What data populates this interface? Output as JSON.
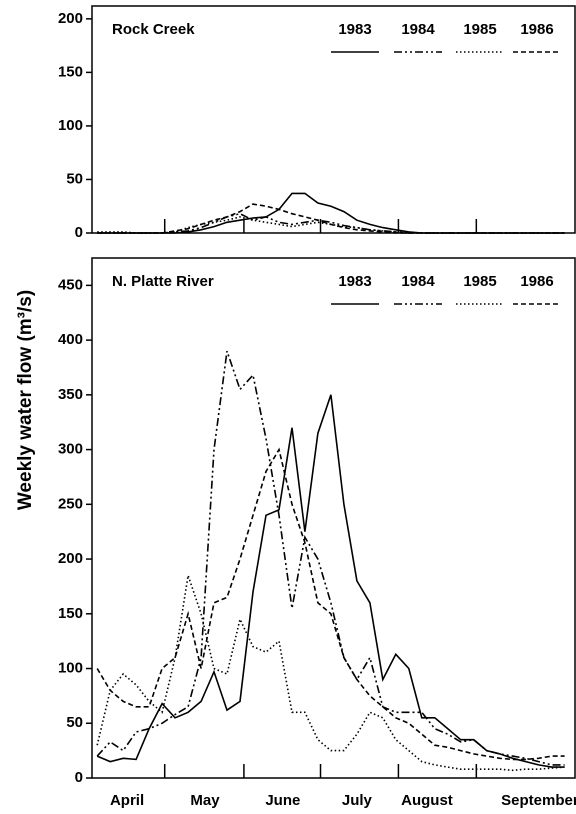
{
  "ylabel": "Weekly water flow (m³/s)",
  "chart_data": [
    {
      "type": "line",
      "title": "Rock Creek",
      "x": [
        0,
        1,
        2,
        3,
        4,
        5,
        6,
        7,
        8,
        9,
        10,
        11,
        12,
        13,
        14,
        15,
        16,
        17,
        18,
        19,
        20,
        21,
        22,
        23,
        24,
        25,
        26,
        27,
        28,
        29,
        30,
        31,
        32,
        33,
        34,
        35,
        36
      ],
      "xlim": [
        -0.4,
        36.8
      ],
      "minor_xticks": [
        5.2,
        11.3,
        17.2,
        23.2,
        29.2
      ],
      "ylim": [
        0,
        212
      ],
      "yticks": [
        0,
        50,
        100,
        150,
        200
      ],
      "series": [
        {
          "name": "1983",
          "color": "#000000",
          "style": "solid",
          "values": [
            0,
            0,
            0,
            0,
            0,
            0,
            0,
            1,
            3,
            6,
            10,
            12,
            14,
            15,
            22,
            37,
            37,
            28,
            25,
            20,
            12,
            8,
            5,
            3,
            1,
            0,
            0,
            0,
            0,
            0,
            0,
            0,
            0,
            0,
            0,
            0,
            0
          ]
        },
        {
          "name": "1984",
          "color": "#000000",
          "style": "dashdot",
          "values": [
            0,
            0,
            0,
            0,
            0,
            0,
            1,
            2,
            5,
            10,
            15,
            18,
            12,
            15,
            10,
            8,
            10,
            12,
            10,
            7,
            5,
            3,
            2,
            1,
            0,
            0,
            0,
            0,
            0,
            0,
            0,
            0,
            0,
            0,
            0,
            0,
            0
          ]
        },
        {
          "name": "1985",
          "color": "#000000",
          "style": "dotted",
          "values": [
            1,
            1,
            1,
            0,
            0,
            0,
            1,
            5,
            8,
            10,
            12,
            15,
            12,
            10,
            8,
            6,
            8,
            10,
            8,
            6,
            5,
            3,
            2,
            1,
            0,
            0,
            0,
            0,
            0,
            0,
            0,
            0,
            0,
            0,
            0,
            0,
            0
          ]
        },
        {
          "name": "1986",
          "color": "#000000",
          "style": "dashed",
          "values": [
            0,
            0,
            0,
            0,
            0,
            0,
            2,
            4,
            8,
            12,
            15,
            20,
            27,
            25,
            22,
            18,
            15,
            12,
            8,
            5,
            3,
            2,
            1,
            0,
            0,
            0,
            0,
            0,
            0,
            0,
            0,
            0,
            0,
            0,
            0,
            0,
            0
          ]
        }
      ]
    },
    {
      "type": "line",
      "title": "N. Platte River",
      "x": [
        0,
        1,
        2,
        3,
        4,
        5,
        6,
        7,
        8,
        9,
        10,
        11,
        12,
        13,
        14,
        15,
        16,
        17,
        18,
        19,
        20,
        21,
        22,
        23,
        24,
        25,
        26,
        27,
        28,
        29,
        30,
        31,
        32,
        33,
        34,
        35,
        36
      ],
      "xlim": [
        -0.4,
        36.8
      ],
      "minor_xticks": [
        5.2,
        11.3,
        17.2,
        23.2,
        29.2
      ],
      "xticks": [
        {
          "value": 2.3,
          "label": "April"
        },
        {
          "value": 8.3,
          "label": "May"
        },
        {
          "value": 14.3,
          "label": "June"
        },
        {
          "value": 20.0,
          "label": "July"
        },
        {
          "value": 25.4,
          "label": "August"
        },
        {
          "value": 34.1,
          "label": "September"
        }
      ],
      "ylim": [
        0,
        475
      ],
      "yticks": [
        0,
        50,
        100,
        150,
        200,
        250,
        300,
        350,
        400,
        450
      ],
      "series": [
        {
          "name": "1983",
          "color": "#000000",
          "style": "solid",
          "values": [
            20,
            15,
            18,
            17,
            45,
            68,
            55,
            60,
            70,
            97,
            62,
            70,
            170,
            240,
            245,
            320,
            225,
            315,
            350,
            250,
            180,
            160,
            90,
            113,
            100,
            55,
            55,
            45,
            35,
            35,
            25,
            22,
            18,
            15,
            12,
            10,
            10
          ]
        },
        {
          "name": "1984",
          "color": "#000000",
          "style": "dashdot",
          "values": [
            20,
            33,
            25,
            42,
            45,
            50,
            58,
            65,
            110,
            300,
            390,
            355,
            368,
            310,
            240,
            155,
            220,
            200,
            160,
            110,
            90,
            110,
            65,
            60,
            60,
            60,
            45,
            40,
            33,
            35,
            25,
            22,
            20,
            18,
            15,
            12,
            12
          ]
        },
        {
          "name": "1985",
          "color": "#000000",
          "style": "dotted",
          "values": [
            30,
            80,
            95,
            85,
            70,
            60,
            110,
            185,
            150,
            100,
            95,
            145,
            120,
            115,
            125,
            60,
            60,
            35,
            25,
            25,
            40,
            60,
            55,
            35,
            25,
            15,
            12,
            10,
            8,
            8,
            8,
            8,
            7,
            8,
            8,
            9,
            10
          ]
        },
        {
          "name": "1986",
          "color": "#000000",
          "style": "dashed",
          "values": [
            100,
            80,
            70,
            65,
            65,
            100,
            110,
            150,
            100,
            160,
            165,
            200,
            240,
            280,
            300,
            250,
            215,
            160,
            150,
            110,
            90,
            75,
            65,
            55,
            50,
            40,
            30,
            28,
            25,
            22,
            20,
            18,
            17,
            17,
            18,
            20,
            20
          ]
        }
      ]
    }
  ]
}
